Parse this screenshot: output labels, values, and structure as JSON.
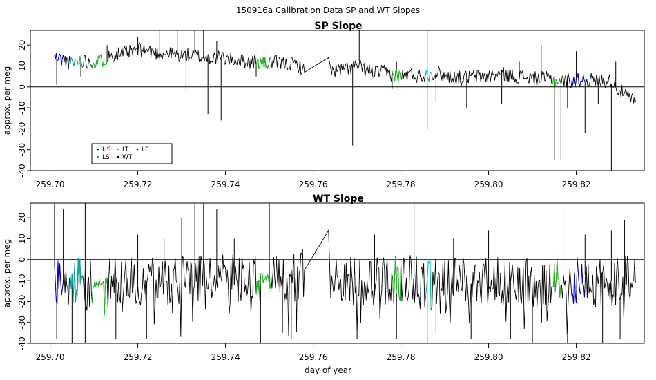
{
  "figure": {
    "title": "150916a   Calibration Data SP and WT Slopes",
    "xlabel": "day of year"
  },
  "chart_data": [
    {
      "type": "line",
      "title": "SP Slope",
      "ylabel": "approx. per meg",
      "xlim": [
        259.6955,
        259.8355
      ],
      "ylim": [
        -40,
        27
      ],
      "xticks": [
        259.7,
        259.72,
        259.74,
        259.76,
        259.78,
        259.8,
        259.82
      ],
      "xtick_labels": [
        "259.70",
        "259.72",
        "259.74",
        "259.76",
        "259.78",
        "259.80",
        "259.82"
      ],
      "yticks": [
        -40,
        -30,
        -20,
        -10,
        0,
        10,
        20
      ],
      "ytick_labels": [
        "-40",
        "-30",
        "-20",
        "-10",
        "0",
        "10",
        "20"
      ],
      "hline": 0,
      "legend": {
        "placement": "bottom-left",
        "entries": [
          {
            "label": "HS",
            "color": "#0000cc"
          },
          {
            "label": "LT",
            "color": "#00cccc"
          },
          {
            "label": "LP",
            "color": "#000000"
          },
          {
            "label": "LS",
            "color": "#22bb22"
          },
          {
            "label": "WT",
            "color": "#000000"
          }
        ]
      },
      "series": [
        {
          "values": [
            [
              259.701,
              14
            ],
            [
              259.703,
              13
            ],
            [
              259.705,
              11
            ],
            [
              259.707,
              13
            ],
            [
              259.709,
              12
            ],
            [
              259.711,
              12
            ],
            [
              259.713,
              14
            ],
            [
              259.715,
              16
            ],
            [
              259.717,
              16
            ],
            [
              259.719,
              17
            ],
            [
              259.721,
              18
            ],
            [
              259.723,
              17
            ],
            [
              259.725,
              16
            ],
            [
              259.727,
              16
            ],
            [
              259.729,
              15
            ],
            [
              259.731,
              15
            ],
            [
              259.733,
              15
            ],
            [
              259.735,
              14
            ],
            [
              259.737,
              14
            ],
            [
              259.739,
              14
            ],
            [
              259.741,
              13
            ],
            [
              259.743,
              13
            ],
            [
              259.745,
              12
            ],
            [
              259.747,
              12
            ],
            [
              259.749,
              11
            ],
            [
              259.751,
              12
            ],
            [
              259.753,
              11
            ],
            [
              259.755,
              11
            ],
            [
              259.757,
              10
            ],
            [
              259.758,
              7
            ],
            [
              259.7635,
              14
            ],
            [
              259.764,
              8
            ],
            [
              259.766,
              8
            ],
            [
              259.768,
              9
            ],
            [
              259.77,
              10
            ],
            [
              259.772,
              8
            ],
            [
              259.774,
              7
            ],
            [
              259.776,
              7
            ],
            [
              259.778,
              6
            ],
            [
              259.78,
              5
            ],
            [
              259.782,
              6
            ],
            [
              259.784,
              5
            ],
            [
              259.786,
              6
            ],
            [
              259.788,
              7
            ],
            [
              259.79,
              5
            ],
            [
              259.792,
              5
            ],
            [
              259.794,
              4
            ],
            [
              259.796,
              5
            ],
            [
              259.798,
              5
            ],
            [
              259.8,
              5
            ],
            [
              259.802,
              6
            ],
            [
              259.804,
              6
            ],
            [
              259.806,
              5
            ],
            [
              259.808,
              5
            ],
            [
              259.81,
              4
            ],
            [
              259.812,
              4
            ],
            [
              259.814,
              4
            ],
            [
              259.816,
              3
            ],
            [
              259.818,
              3
            ],
            [
              259.82,
              3
            ],
            [
              259.822,
              4
            ],
            [
              259.824,
              3
            ],
            [
              259.826,
              3
            ],
            [
              259.828,
              3
            ],
            [
              259.83,
              -2
            ],
            [
              259.832,
              -5
            ],
            [
              259.8335,
              -7
            ]
          ]
        }
      ],
      "spikes": [
        [
          259.7015,
          1
        ],
        [
          259.707,
          5
        ],
        [
          259.713,
          20
        ],
        [
          259.72,
          24
        ],
        [
          259.725,
          27
        ],
        [
          259.729,
          27
        ],
        [
          259.731,
          -2
        ],
        [
          259.733,
          27
        ],
        [
          259.735,
          27
        ],
        [
          259.736,
          -13
        ],
        [
          259.738,
          22
        ],
        [
          259.739,
          -16
        ],
        [
          259.747,
          5
        ],
        [
          259.769,
          -28
        ],
        [
          259.7705,
          27
        ],
        [
          259.778,
          -1
        ],
        [
          259.779,
          12
        ],
        [
          259.786,
          27
        ],
        [
          259.786,
          -20
        ],
        [
          259.788,
          -7
        ],
        [
          259.795,
          -10
        ],
        [
          259.803,
          -8
        ],
        [
          259.807,
          12
        ],
        [
          259.812,
          20
        ],
        [
          259.815,
          -35
        ],
        [
          259.8165,
          -35
        ],
        [
          259.818,
          -10
        ],
        [
          259.82,
          17
        ],
        [
          259.822,
          -22
        ],
        [
          259.825,
          -8
        ],
        [
          259.828,
          -40
        ],
        [
          259.829,
          12
        ]
      ]
    },
    {
      "type": "line",
      "title": "WT Slope",
      "ylabel": "approx. per meg",
      "xlim": [
        259.6955,
        259.8355
      ],
      "ylim": [
        -40,
        27
      ],
      "xticks": [
        259.7,
        259.72,
        259.74,
        259.76,
        259.78,
        259.8,
        259.82
      ],
      "xtick_labels": [
        "259.70",
        "259.72",
        "259.74",
        "259.76",
        "259.78",
        "259.80",
        "259.82"
      ],
      "yticks": [
        -40,
        -30,
        -20,
        -10,
        0,
        10,
        20
      ],
      "ytick_labels": [
        "-40",
        "-30",
        "-20",
        "-10",
        "0",
        "10",
        "20"
      ],
      "hline": 0,
      "series": [
        {
          "values": [
            [
              259.701,
              -13
            ],
            [
              259.703,
              -12
            ],
            [
              259.705,
              -13
            ],
            [
              259.707,
              -12
            ],
            [
              259.709,
              -13
            ],
            [
              259.711,
              -12
            ],
            [
              259.713,
              -10
            ],
            [
              259.715,
              -10
            ],
            [
              259.72,
              -11
            ],
            [
              259.725,
              -11
            ],
            [
              259.73,
              -11
            ],
            [
              259.735,
              -11
            ],
            [
              259.74,
              -10
            ],
            [
              259.745,
              -11
            ],
            [
              259.749,
              -9
            ],
            [
              259.751,
              -10
            ],
            [
              259.755,
              -12
            ],
            [
              259.758,
              -5
            ],
            [
              259.7635,
              14
            ],
            [
              259.764,
              -10
            ],
            [
              259.77,
              -12
            ],
            [
              259.775,
              -12
            ],
            [
              259.78,
              -10
            ],
            [
              259.785,
              -12
            ],
            [
              259.79,
              -12
            ],
            [
              259.795,
              -11
            ],
            [
              259.8,
              -12
            ],
            [
              259.805,
              -12
            ],
            [
              259.81,
              -12
            ],
            [
              259.815,
              -11
            ],
            [
              259.82,
              -11
            ],
            [
              259.825,
              -12
            ],
            [
              259.83,
              -11
            ],
            [
              259.8335,
              -11
            ]
          ]
        }
      ],
      "spikes": [
        [
          259.701,
          27
        ],
        [
          259.7015,
          -38
        ],
        [
          259.703,
          24
        ],
        [
          259.705,
          -40
        ],
        [
          259.708,
          27
        ],
        [
          259.708,
          -40
        ],
        [
          259.715,
          -38
        ],
        [
          259.72,
          12
        ],
        [
          259.722,
          -38
        ],
        [
          259.726,
          10
        ],
        [
          259.73,
          20
        ],
        [
          259.733,
          27
        ],
        [
          259.735,
          27
        ],
        [
          259.738,
          24
        ],
        [
          259.742,
          10
        ],
        [
          259.748,
          -40
        ],
        [
          259.75,
          27
        ],
        [
          259.753,
          -35
        ],
        [
          259.755,
          -38
        ],
        [
          259.77,
          -38
        ],
        [
          259.774,
          12
        ],
        [
          259.779,
          -38
        ],
        [
          259.783,
          27
        ],
        [
          259.786,
          -40
        ],
        [
          259.788,
          -35
        ],
        [
          259.792,
          10
        ],
        [
          259.796,
          -38
        ],
        [
          259.8,
          14
        ],
        [
          259.805,
          -38
        ],
        [
          259.81,
          -40
        ],
        [
          259.817,
          27
        ],
        [
          259.818,
          -40
        ],
        [
          259.822,
          12
        ],
        [
          259.826,
          -40
        ],
        [
          259.828,
          14
        ],
        [
          259.83,
          -38
        ],
        [
          259.831,
          19
        ]
      ]
    }
  ]
}
